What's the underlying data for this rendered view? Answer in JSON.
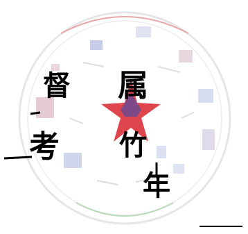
{
  "scan": {
    "ink_color": "#000000",
    "seal_red": "#d9242e",
    "seal_blue": "#2b4fb8",
    "seal_gray": "#cfcfd4",
    "background": "#ffffff"
  },
  "signature": {
    "characters": [
      "督",
      "属",
      "考",
      "竹",
      "年"
    ]
  }
}
